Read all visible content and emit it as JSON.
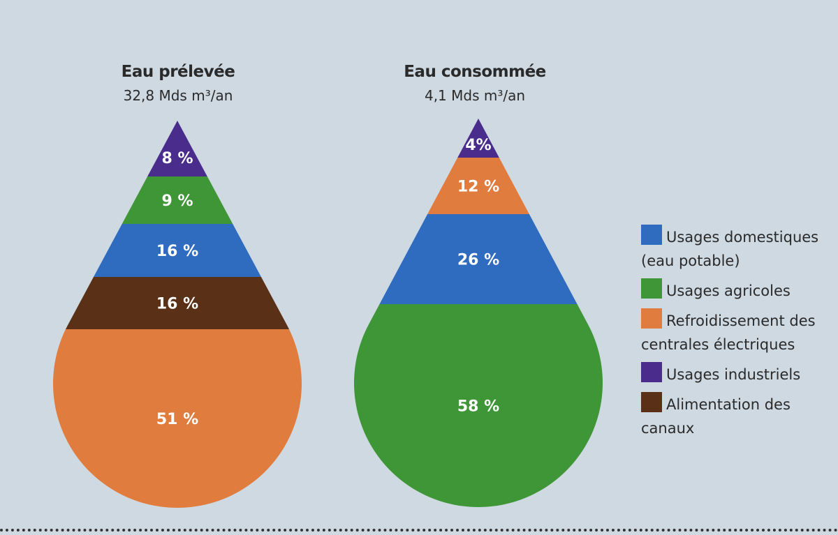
{
  "chart_data": [
    {
      "type": "pie",
      "title": "Eau prélevée",
      "subtitle": "32,8 Mds m³/an",
      "slices": [
        {
          "category": "Usages industriels",
          "value": 8,
          "label": "8 %"
        },
        {
          "category": "Usages agricoles",
          "value": 9,
          "label": "9 %"
        },
        {
          "category": "Usages domestiques (eau potable)",
          "value": 16,
          "label": "16 %"
        },
        {
          "category": "Alimentation des canaux",
          "value": 16,
          "label": "16 %"
        },
        {
          "category": "Refroidissement des centrales électriques",
          "value": 51,
          "label": "51 %"
        }
      ]
    },
    {
      "type": "pie",
      "title": "Eau consommée",
      "subtitle": "4,1 Mds m³/an",
      "slices": [
        {
          "category": "Usages industriels",
          "value": 4,
          "label": "4%"
        },
        {
          "category": "Refroidissement des centrales électriques",
          "value": 12,
          "label": "12 %"
        },
        {
          "category": "Usages domestiques (eau potable)",
          "value": 26,
          "label": "26 %"
        },
        {
          "category": "Usages agricoles",
          "value": 58,
          "label": "58 %"
        }
      ]
    }
  ],
  "legend": [
    {
      "label": "Usages domestiques (eau potable)",
      "color": "#2f6cbf"
    },
    {
      "label": "Usages agricoles",
      "color": "#3f9637"
    },
    {
      "label": "Refroidissement des centrales électriques",
      "color": "#e07c3e"
    },
    {
      "label": "Usages industriels",
      "color": "#4a2c8c"
    },
    {
      "label": "Alimentation des canaux",
      "color": "#5a3116"
    }
  ]
}
